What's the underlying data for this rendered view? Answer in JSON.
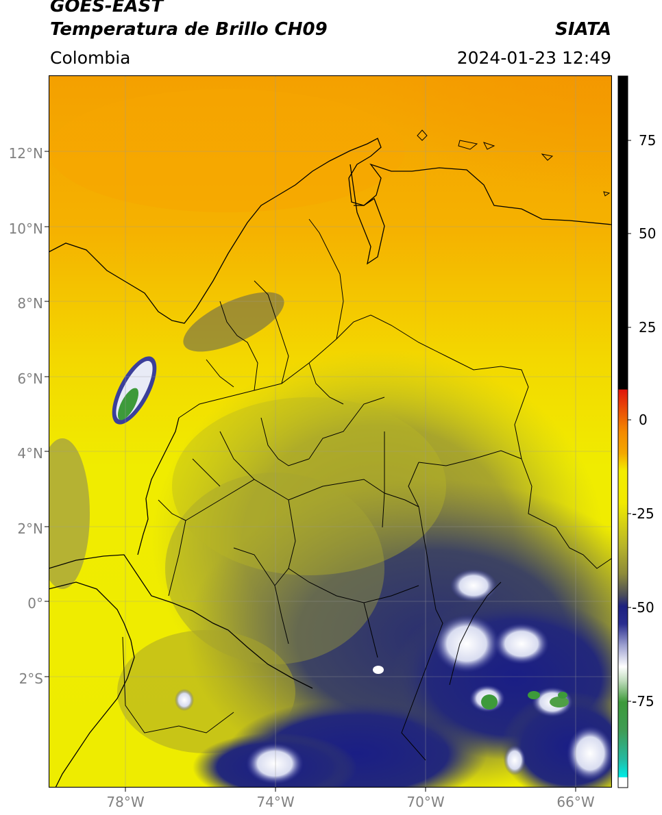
{
  "header": {
    "satellite": "GOES-EAST",
    "product": "Temperatura de Brillo CH09",
    "source": "SIATA",
    "region": "Colombia",
    "datetime": "2024-01-23 12:49"
  },
  "map": {
    "lat_labels": [
      "12°N",
      "10°N",
      "8°N",
      "6°N",
      "4°N",
      "2°N",
      "0°",
      "2°S"
    ],
    "lon_labels": [
      "78°W",
      "74°W",
      "70°W",
      "66°W"
    ],
    "colors": {
      "warm": "#f4a400",
      "yellow": "#f3ec00",
      "olive": "#a9a628",
      "dark": "#3d4362",
      "navy": "#1d2180",
      "white": "#ffffff",
      "green": "#3d9a3a",
      "border": "#000000"
    }
  },
  "colorbar": {
    "ticks": [
      "75",
      "50",
      "25",
      "0",
      "-25",
      "-50",
      "-75"
    ],
    "colors": [
      "#000000",
      "#e0160b",
      "#f49a00",
      "#f3ec00",
      "#8d8a3a",
      "#1d2180",
      "#ffffff",
      "#3d9a3a",
      "#25b9a0",
      "#00ebe6"
    ]
  }
}
